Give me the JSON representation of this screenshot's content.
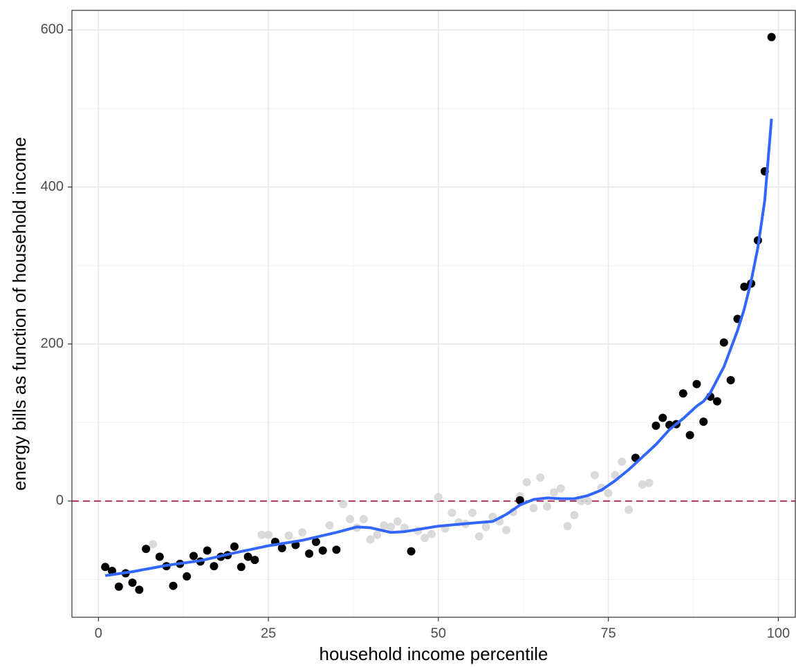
{
  "chart_data": {
    "type": "scatter",
    "x_label": "household income percentile",
    "y_label": "energy bills as function of household income",
    "xlim": [
      -3.9,
      102.5
    ],
    "ylim": [
      -148,
      625
    ],
    "xticks": [
      0,
      25,
      50,
      75,
      100
    ],
    "yticks": [
      0,
      200,
      400,
      600
    ],
    "grid": true,
    "hline": {
      "value": 0,
      "color": "#b5325e"
    },
    "series": [
      {
        "mode": "points",
        "color": "#d4d4d4",
        "x": [
          8,
          24,
          25,
          28,
          30,
          34,
          36,
          37,
          38,
          39,
          40,
          41,
          42,
          43,
          44,
          45,
          47,
          48,
          49,
          50,
          51,
          52,
          53,
          54,
          55,
          56,
          57,
          58,
          59,
          60,
          61,
          62,
          63,
          64,
          65,
          66,
          67,
          68,
          69,
          70,
          71,
          72,
          73,
          74,
          75,
          76,
          77,
          78,
          80,
          81
        ],
        "values": [
          -55,
          -43,
          -43,
          -44,
          -40,
          -31,
          -4,
          -23,
          -34,
          -23,
          -49,
          -43,
          -31,
          -33,
          -26,
          -34,
          -38,
          -47,
          -42,
          5,
          -35,
          -15,
          -27,
          -29,
          -15,
          -45,
          -33,
          -20,
          -26,
          -37,
          -14,
          6,
          24,
          -9,
          30,
          -7,
          11,
          16,
          -32,
          -18,
          0,
          0,
          33,
          17,
          10,
          33,
          50,
          -11,
          21,
          23
        ]
      },
      {
        "mode": "points",
        "color": "#000000",
        "x": [
          1,
          2,
          3,
          4,
          5,
          6,
          7,
          9,
          10,
          11,
          12,
          13,
          14,
          15,
          16,
          17,
          18,
          19,
          20,
          21,
          22,
          23,
          26,
          27,
          29,
          31,
          32,
          33,
          35,
          46,
          62,
          79,
          82,
          83,
          84,
          85,
          86,
          87,
          88,
          89,
          90,
          91,
          92,
          93,
          94,
          95,
          96,
          97,
          98,
          99
        ],
        "values": [
          -84,
          -89,
          -109,
          -92,
          -104,
          -113,
          -61,
          -71,
          -83,
          -108,
          -80,
          -96,
          -70,
          -77,
          -63,
          -83,
          -71,
          -69,
          -58,
          -84,
          -71,
          -75,
          -52,
          -60,
          -56,
          -67,
          -52,
          -63,
          -62,
          -64,
          1,
          55,
          96,
          106,
          97,
          98,
          137,
          84,
          149,
          101,
          133,
          127,
          202,
          154,
          232,
          273,
          277,
          332,
          420,
          591
        ]
      },
      {
        "mode": "line",
        "color": "#3366ff",
        "x": [
          1,
          5,
          10,
          15,
          20,
          25,
          30,
          35,
          38,
          40,
          43,
          45,
          50,
          55,
          58,
          60,
          62,
          64,
          66,
          68,
          70,
          72,
          74,
          76,
          78,
          80,
          82,
          84,
          86,
          88,
          89,
          90,
          92,
          93,
          94,
          95,
          96,
          97,
          98,
          99
        ],
        "values": [
          -95,
          -90,
          -82,
          -76,
          -66,
          -57,
          -50,
          -40,
          -33,
          -34,
          -40,
          -39,
          -32,
          -28,
          -26,
          -17,
          -5,
          2,
          4,
          3,
          3,
          7,
          14,
          26,
          40,
          56,
          72,
          91,
          105,
          121,
          127,
          138,
          171,
          194,
          217,
          245,
          280,
          323,
          383,
          487
        ]
      }
    ]
  }
}
